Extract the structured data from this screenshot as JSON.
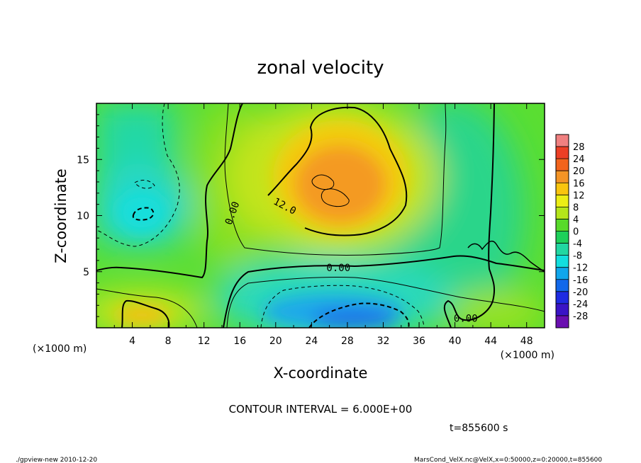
{
  "chart_data": {
    "type": "heatmap",
    "title": "zonal velocity",
    "xlabel": "X-coordinate",
    "ylabel": "Z-coordinate",
    "x_unit": "(×1000 m)",
    "y_unit": "(×1000 m)",
    "xlim": [
      0,
      50
    ],
    "ylim": [
      0,
      20
    ],
    "x_ticks": [
      4,
      8,
      12,
      16,
      20,
      24,
      28,
      32,
      36,
      40,
      44,
      48
    ],
    "y_ticks": [
      5,
      10,
      15
    ],
    "colorbar": {
      "levels": [
        28,
        24,
        20,
        16,
        12,
        8,
        4,
        0,
        -4,
        -8,
        -12,
        -16,
        -20,
        -24,
        -28
      ],
      "colors": [
        "#f08080",
        "#ec3f25",
        "#f2641c",
        "#f49426",
        "#f9c50f",
        "#ecee15",
        "#b4e51a",
        "#58da2a",
        "#1ed05a",
        "#22d7a2",
        "#13dede",
        "#10a6ec",
        "#1268ea",
        "#1e2be2",
        "#3a14c6",
        "#6a0fb0"
      ]
    },
    "contour_labels": [
      {
        "text": "0.00",
        "x": 15.2,
        "z": 10.2
      },
      {
        "text": "12.0",
        "x": 21.0,
        "z": 10.8
      },
      {
        "text": "0.00",
        "x": 27.0,
        "z": 5.3
      },
      {
        "text": "0.00",
        "x": 41.2,
        "z": 0.8
      }
    ],
    "contour_interval_text": "CONTOUR INTERVAL = 6.000E+00",
    "time_text": "t=855600 s"
  },
  "footer": {
    "left": "./gpview-new  2010-12-20",
    "right": "MarsCond_VelX.nc@VelX,x=0:50000,z=0:20000,t=855600"
  }
}
